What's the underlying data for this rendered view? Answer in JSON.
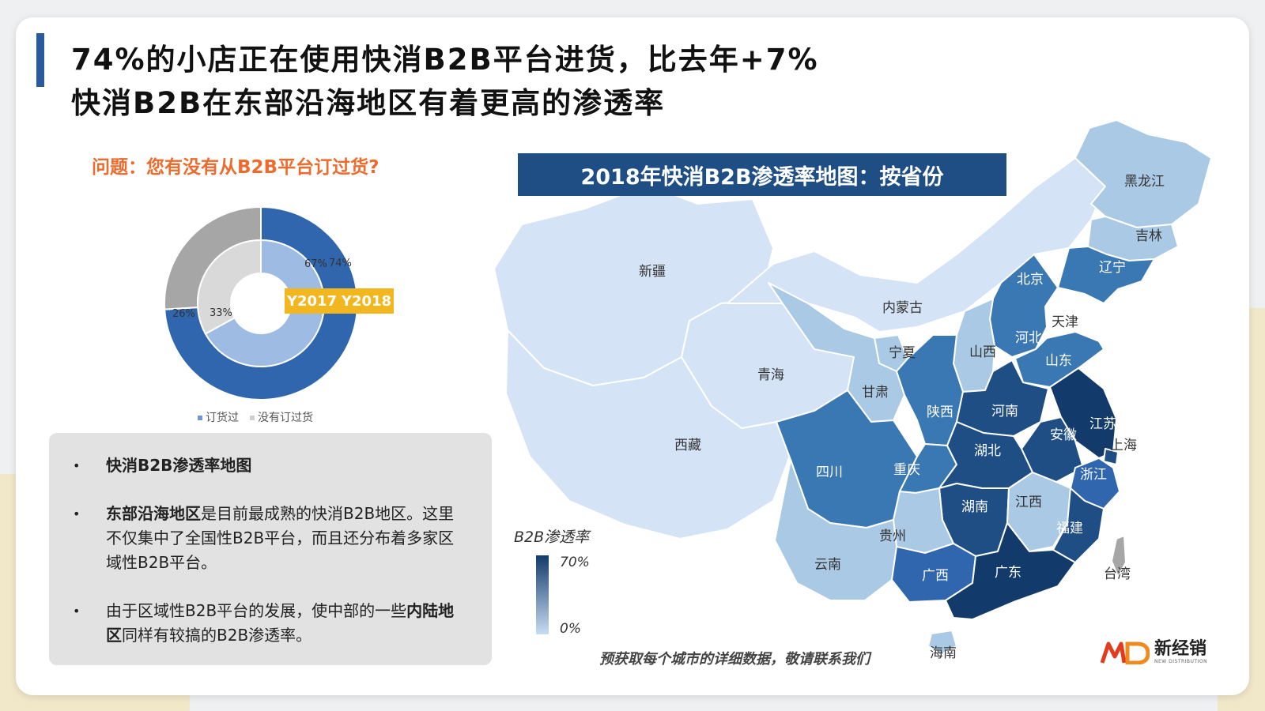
{
  "title": {
    "line1": "74%的小店正在使用快消B2B平台进货，比去年+7%",
    "line2": "快消B2B在东部沿海地区有着更高的渗透率"
  },
  "question": "问题：您有没有从B2B平台订过货?",
  "year_tag": {
    "y1": "Y2017",
    "y2": "Y2018"
  },
  "legend": {
    "ordered": "订货过",
    "not_ordered": "没有订过货"
  },
  "colors": {
    "ordered_2018": "#2f66ad",
    "not_ordered_2018": "#a6a6a6",
    "ordered_2017": "#9dbbe3",
    "not_ordered_2017": "#d9d9d9",
    "title_bar": "#1f4e85",
    "accent": "#ed6b2c",
    "tag": "#f2b61f"
  },
  "chart_data": [
    {
      "type": "pie",
      "subtype": "nested-donut",
      "categories": [
        "订货过",
        "没有订过货"
      ],
      "series": [
        {
          "name": "Y2018",
          "values": [
            74,
            26
          ],
          "labels": [
            "74%",
            "26%"
          ]
        },
        {
          "name": "Y2017",
          "values": [
            67,
            33
          ],
          "labels": [
            "67%",
            "33%"
          ]
        }
      ],
      "legend": "bottom"
    }
  ],
  "notes": [
    {
      "text": "快消B2B渗透率地图",
      "bold": true
    },
    {
      "bold_part": "东部沿海地区",
      "text": "是目前最成熟的快消B2B地区。这里不仅集中了全国性B2B平台，而且还分布着多家区域性B2B平台。"
    },
    {
      "pre": "由于区域性B2B平台的发展，使中部的一些",
      "bold_part": "内陆地区",
      "post": "同样有较搞的B2B渗透率。"
    }
  ],
  "map": {
    "title": "2018年快消B2B渗透率地图：按省份",
    "scale_title": "B2B渗透率",
    "scale_max": "70%",
    "scale_min": "0%",
    "contact": "预获取每个城市的详细数据，敬请联系我们",
    "provinces": [
      {
        "name": "新疆"
      },
      {
        "name": "西藏"
      },
      {
        "name": "青海"
      },
      {
        "name": "内蒙古"
      },
      {
        "name": "黑龙江"
      },
      {
        "name": "吉林"
      },
      {
        "name": "辽宁"
      },
      {
        "name": "北京"
      },
      {
        "name": "天津"
      },
      {
        "name": "河北"
      },
      {
        "name": "山西"
      },
      {
        "name": "山东"
      },
      {
        "name": "宁夏"
      },
      {
        "name": "甘肃"
      },
      {
        "name": "陕西"
      },
      {
        "name": "河南"
      },
      {
        "name": "江苏"
      },
      {
        "name": "安徽"
      },
      {
        "name": "上海"
      },
      {
        "name": "四川"
      },
      {
        "name": "重庆"
      },
      {
        "name": "湖北"
      },
      {
        "name": "浙江"
      },
      {
        "name": "湖南"
      },
      {
        "name": "江西"
      },
      {
        "name": "福建"
      },
      {
        "name": "贵州"
      },
      {
        "name": "云南"
      },
      {
        "name": "广西"
      },
      {
        "name": "广东"
      },
      {
        "name": "台湾"
      },
      {
        "name": "海南"
      }
    ]
  },
  "logo": {
    "cn": "新经销",
    "en": "NEW DISTRIBUTION"
  }
}
